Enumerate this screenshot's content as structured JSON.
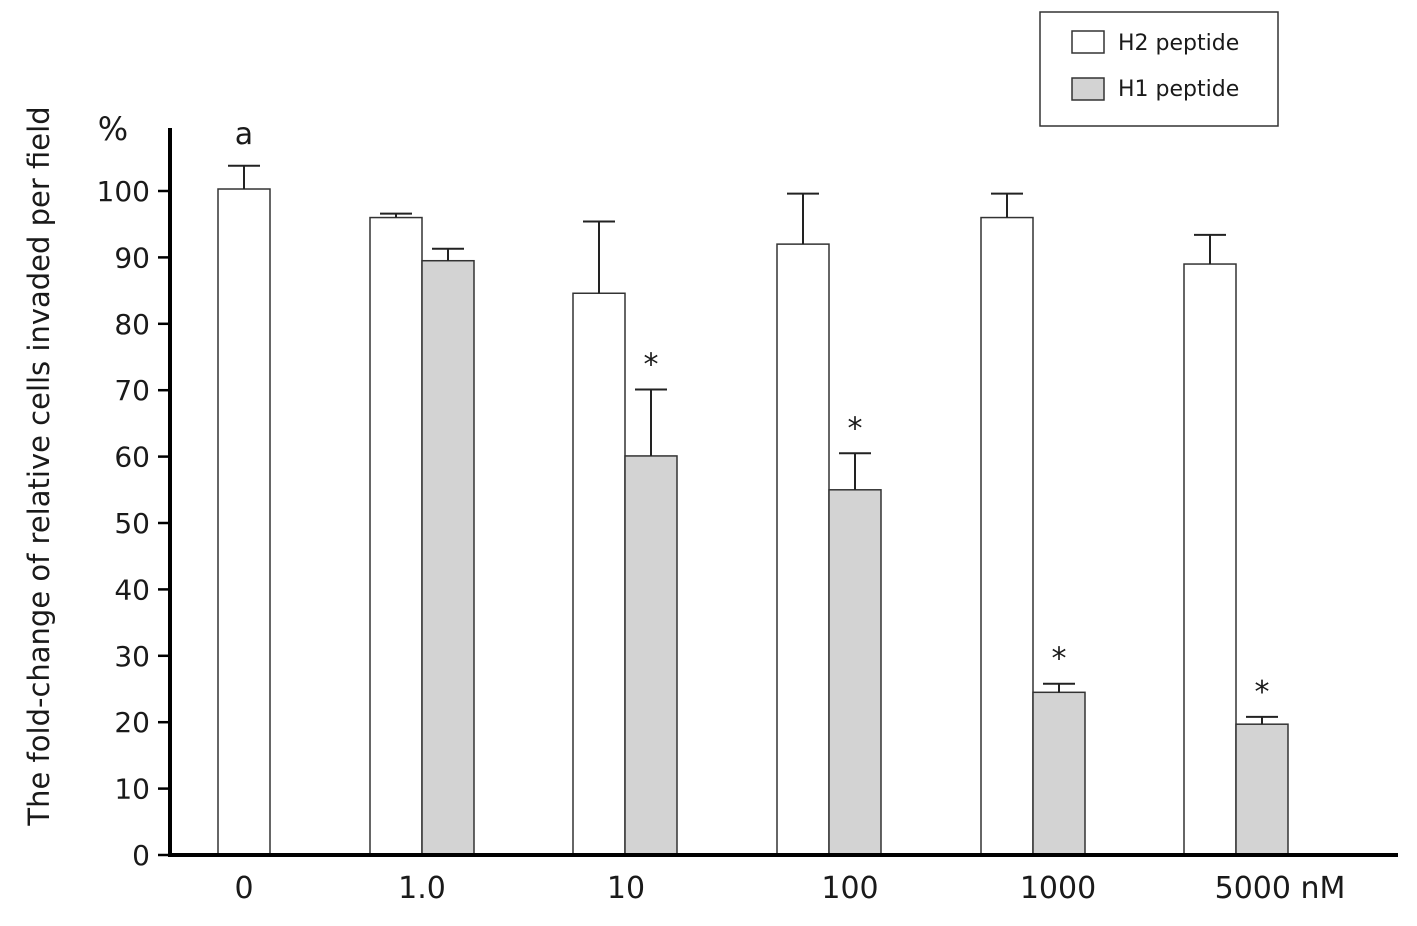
{
  "chart_data": {
    "type": "bar",
    "unit_label": "%",
    "ylabel": "The fold-change of relative cells invaded per field",
    "xlabel": "",
    "ylim": [
      0,
      100
    ],
    "yticks": [
      0,
      10,
      20,
      30,
      40,
      50,
      60,
      70,
      80,
      90,
      100
    ],
    "grid": false,
    "legend_position": "top-right",
    "categories": [
      "0",
      "1.0",
      "10",
      "100",
      "1000",
      "5000 nM"
    ],
    "series": [
      {
        "name": "H2 peptide",
        "color": "#ffffff",
        "values": [
          100.3,
          96,
          84.6,
          92,
          96,
          89
        ],
        "errors": [
          3.5,
          0.6,
          10.8,
          7.6,
          3.6,
          4.4
        ],
        "annotations": [
          "a",
          "",
          "",
          "",
          "",
          ""
        ]
      },
      {
        "name": "H1 peptide",
        "color": "#d3d3d3",
        "values": [
          null,
          89.5,
          60.1,
          55,
          24.5,
          19.7
        ],
        "errors": [
          null,
          1.8,
          10,
          5.5,
          1.3,
          1.1
        ],
        "annotations": [
          "",
          "",
          "*",
          "*",
          "*",
          "*"
        ]
      }
    ]
  }
}
